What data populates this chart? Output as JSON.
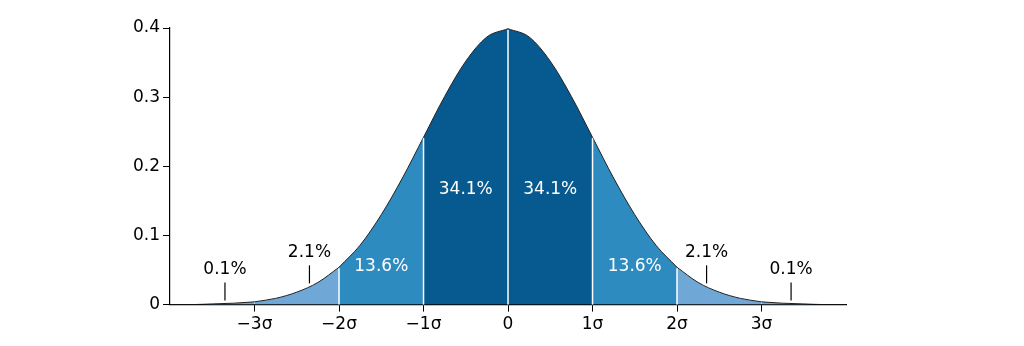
{
  "chart_data": {
    "type": "area",
    "xlim": [
      -4,
      4
    ],
    "xticks": [
      {
        "value": -3,
        "label": "−3σ"
      },
      {
        "value": -2,
        "label": "−2σ"
      },
      {
        "value": -1,
        "label": "−1σ"
      },
      0,
      {
        "value": 1,
        "label": "1σ"
      },
      {
        "value": 2,
        "label": "2σ"
      },
      {
        "value": 3,
        "label": "3σ"
      }
    ],
    "ylim": [
      0,
      0.4
    ],
    "yticks": [
      0,
      0.1,
      0.2,
      0.3,
      0.4
    ],
    "legend": false,
    "series": [
      {
        "color": "#6fa8d6",
        "x": [
          -4,
          -3.75,
          -3.5,
          -3.25,
          -3
        ],
        "values": [
          0.0,
          0.0,
          0.001,
          0.002,
          0.004
        ]
      },
      {
        "color": "#6fa8d6",
        "x": [
          -3,
          -2.75,
          -2.5,
          -2.25,
          -2
        ],
        "values": [
          0.004,
          0.009,
          0.018,
          0.032,
          0.054
        ]
      },
      {
        "color": "#2e8bc0",
        "x": [
          -2,
          -1.75,
          -1.5,
          -1.25,
          -1
        ],
        "values": [
          0.054,
          0.086,
          0.13,
          0.183,
          0.242
        ]
      },
      {
        "color": "#065a8f",
        "x": [
          -1,
          -0.75,
          -0.5,
          -0.25,
          0
        ],
        "values": [
          0.242,
          0.301,
          0.352,
          0.387,
          0.399
        ]
      },
      {
        "color": "#065a8f",
        "x": [
          0,
          0.25,
          0.5,
          0.75,
          1
        ],
        "values": [
          0.399,
          0.387,
          0.352,
          0.301,
          0.242
        ]
      },
      {
        "color": "#2e8bc0",
        "x": [
          1,
          1.25,
          1.5,
          1.75,
          2
        ],
        "values": [
          0.242,
          0.183,
          0.13,
          0.086,
          0.054
        ]
      },
      {
        "color": "#6fa8d6",
        "x": [
          2,
          2.25,
          2.5,
          2.75,
          3
        ],
        "values": [
          0.054,
          0.032,
          0.018,
          0.009,
          0.004
        ]
      },
      {
        "color": "#6fa8d6",
        "x": [
          3,
          3.25,
          3.5,
          3.75,
          4
        ],
        "values": [
          0.004,
          0.002,
          0.001,
          0.0,
          0.0
        ]
      }
    ],
    "ref_lines": [
      {
        "axis": "x",
        "value": -2,
        "color": "#ffffff"
      },
      {
        "axis": "x",
        "value": -1,
        "color": "#ffffff"
      },
      {
        "axis": "x",
        "value": 0,
        "color": "#ffffff"
      },
      {
        "axis": "x",
        "value": 1,
        "color": "#ffffff"
      },
      {
        "axis": "x",
        "value": 2,
        "color": "#ffffff"
      }
    ],
    "annotations": [
      "0.1%",
      "2.1%",
      "13.6%",
      "34.1%",
      "34.1%",
      "13.6%",
      "2.1%",
      "0.1%"
    ]
  }
}
